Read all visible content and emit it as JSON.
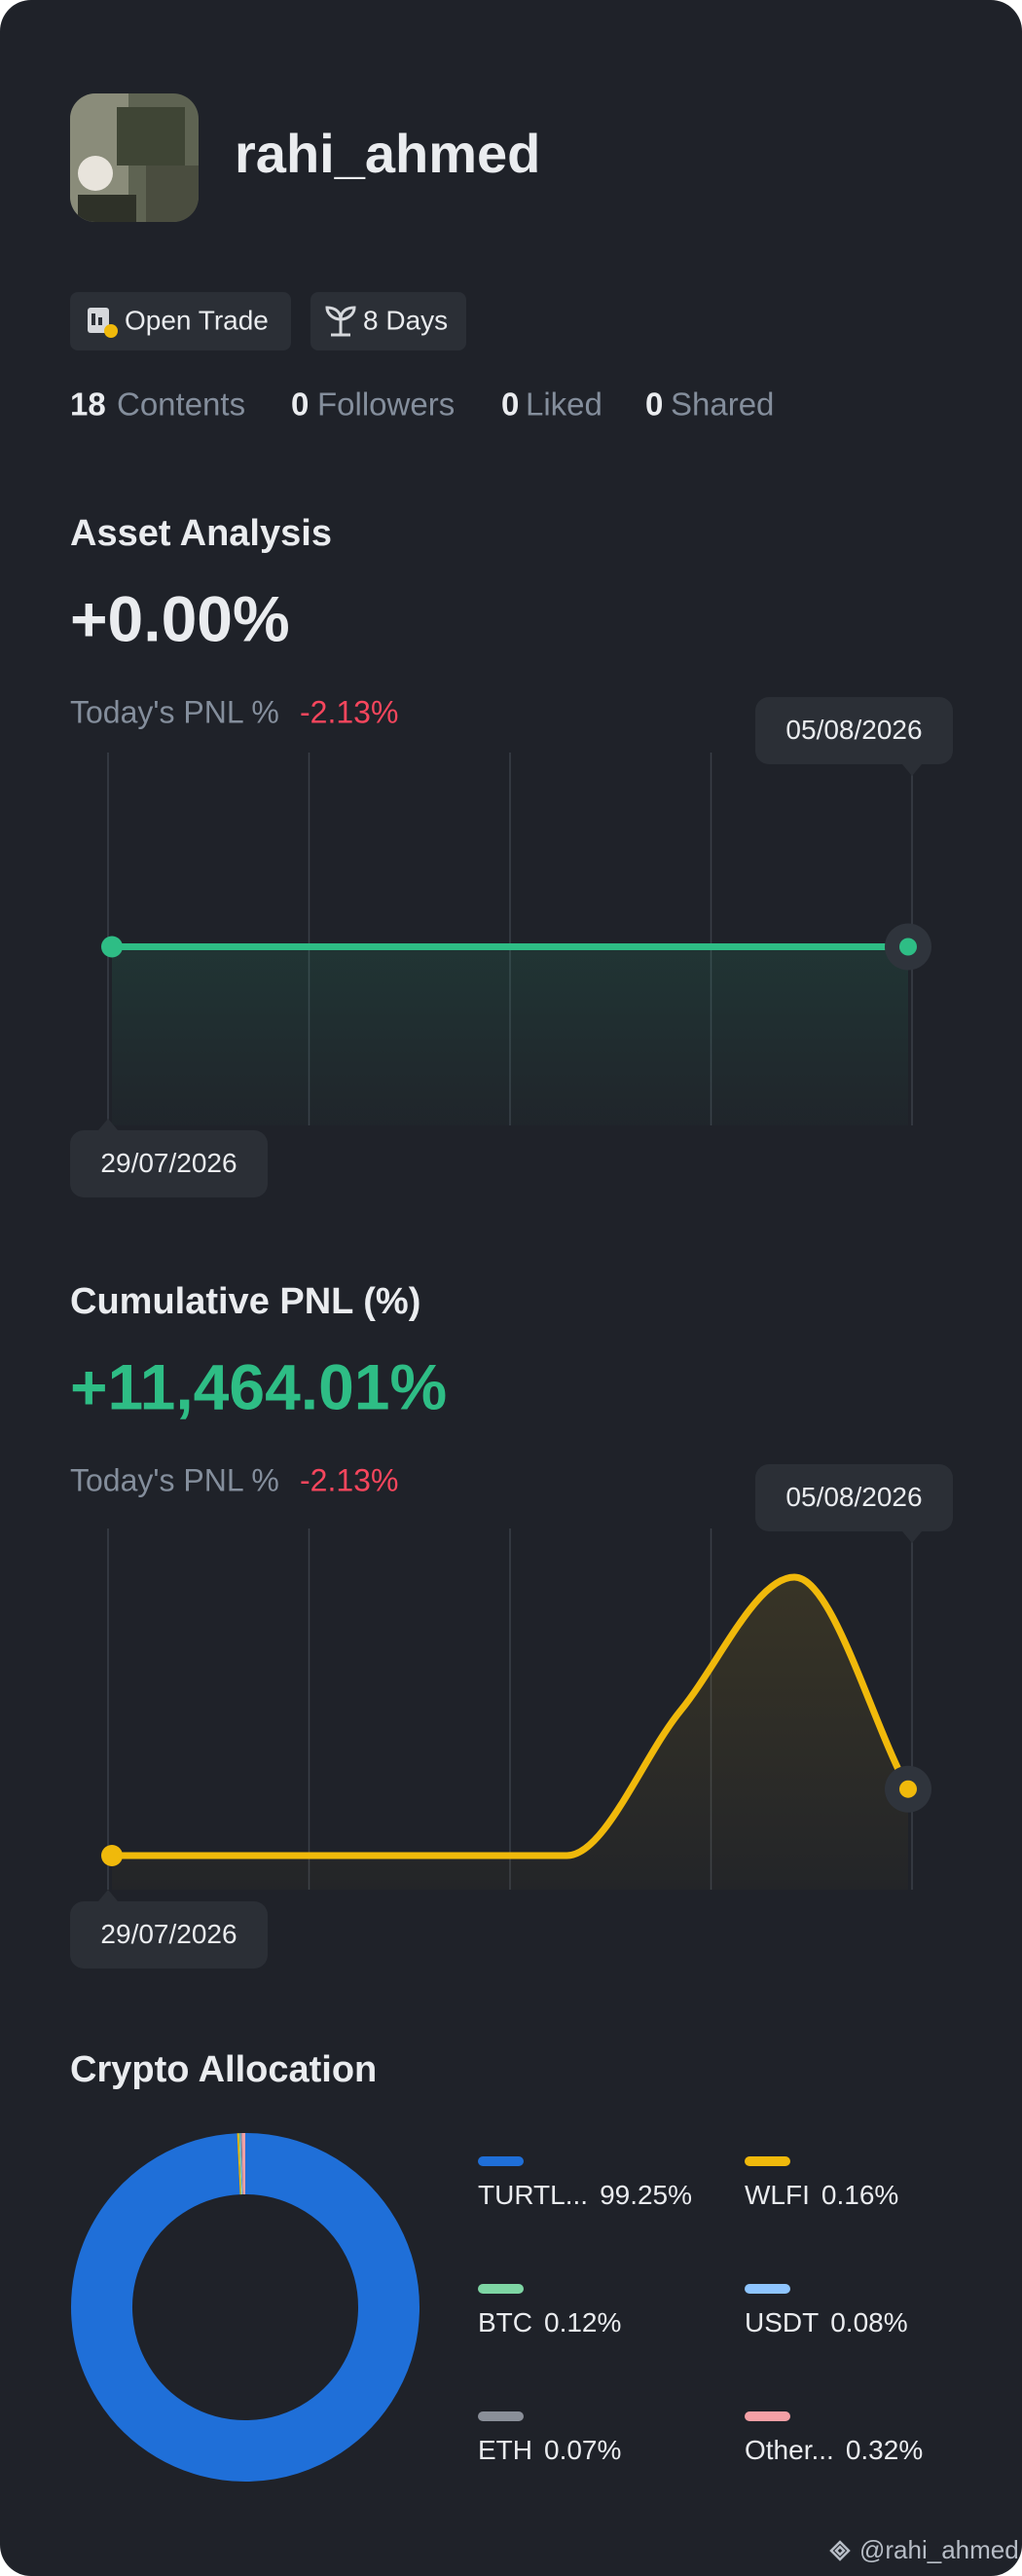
{
  "profile": {
    "username": "rahi_ahmed",
    "badges": [
      "Open Trade",
      "8 Days"
    ],
    "stats": [
      {
        "count": 18,
        "label": "Contents"
      },
      {
        "count": 0,
        "label": "Followers"
      },
      {
        "count": 0,
        "label": "Liked"
      },
      {
        "count": 0,
        "label": "Shared"
      }
    ]
  },
  "chart_data": [
    {
      "type": "line",
      "title": "Asset Analysis",
      "headline": "+0.00%",
      "pnl_label": "Today's PNL %",
      "pnl_value": "-2.13%",
      "categories": [
        "29/07/2026",
        null,
        null,
        null,
        null,
        null,
        null,
        "05/08/2026"
      ],
      "series": [
        {
          "color": "#2ebd85",
          "values": [
            0,
            0,
            0,
            0,
            0,
            0,
            0,
            0
          ]
        }
      ]
    },
    {
      "type": "line",
      "title": "Cumulative PNL (%)",
      "headline": "+11,464.01%",
      "pnl_label": "Today's PNL %",
      "pnl_value": "-2.13%",
      "categories": [
        "29/07/2026",
        null,
        null,
        null,
        null,
        null,
        null,
        "05/08/2026"
      ],
      "series": [
        {
          "color": "#f0b90b",
          "values": [
            0,
            0,
            0,
            0,
            0,
            25000,
            48000,
            11464.01
          ]
        }
      ]
    },
    {
      "type": "donut",
      "title": "Crypto Allocation",
      "categories": [
        "TURTL...",
        "WLFI",
        "BTC",
        "USDT",
        "ETH",
        "Other..."
      ],
      "values": [
        99.25,
        0.16,
        0.12,
        0.08,
        0.07,
        0.32
      ],
      "value_labels": [
        "99.25%",
        "0.16%",
        "0.12%",
        "0.08%",
        "0.07%",
        "0.32%"
      ],
      "colors": [
        "#1f6fd8",
        "#f0b90b",
        "#7ed6a4",
        "#8ec5ff",
        "#8a8f99",
        "#f4a0a6"
      ]
    }
  ],
  "footer": {
    "handle": "@rahi_ahmed"
  }
}
